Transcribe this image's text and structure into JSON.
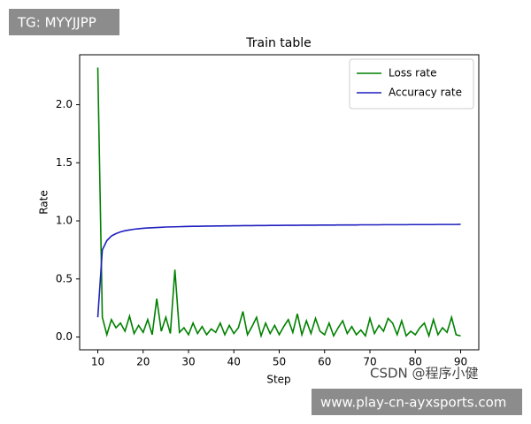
{
  "chart_data": {
    "type": "line",
    "title": "Train table",
    "xlabel": "Step",
    "ylabel": "Rate",
    "x": [
      10,
      11,
      12,
      13,
      14,
      15,
      16,
      17,
      18,
      19,
      20,
      21,
      22,
      23,
      24,
      25,
      26,
      27,
      28,
      29,
      30,
      31,
      32,
      33,
      34,
      35,
      36,
      37,
      38,
      39,
      40,
      41,
      42,
      43,
      44,
      45,
      46,
      47,
      48,
      49,
      50,
      51,
      52,
      53,
      54,
      55,
      56,
      57,
      58,
      59,
      60,
      61,
      62,
      63,
      64,
      65,
      66,
      67,
      68,
      69,
      70,
      71,
      72,
      73,
      74,
      75,
      76,
      77,
      78,
      79,
      80,
      81,
      82,
      83,
      84,
      85,
      86,
      87,
      88,
      89,
      90
    ],
    "series": [
      {
        "name": "Loss rate",
        "color": "#008000",
        "values": [
          2.32,
          0.17,
          0.02,
          0.15,
          0.08,
          0.12,
          0.05,
          0.18,
          0.03,
          0.1,
          0.04,
          0.15,
          0.02,
          0.33,
          0.05,
          0.17,
          0.03,
          0.58,
          0.04,
          0.08,
          0.02,
          0.12,
          0.03,
          0.09,
          0.02,
          0.07,
          0.04,
          0.12,
          0.02,
          0.1,
          0.03,
          0.08,
          0.22,
          0.02,
          0.09,
          0.17,
          0.01,
          0.12,
          0.03,
          0.1,
          0.02,
          0.09,
          0.15,
          0.04,
          0.2,
          0.02,
          0.14,
          0.03,
          0.16,
          0.05,
          0.02,
          0.12,
          0.01,
          0.08,
          0.14,
          0.03,
          0.09,
          0.02,
          0.06,
          0.01,
          0.16,
          0.03,
          0.1,
          0.05,
          0.16,
          0.12,
          0.02,
          0.14,
          0.01,
          0.05,
          0.02,
          0.08,
          0.12,
          0.01,
          0.15,
          0.02,
          0.08,
          0.04,
          0.17,
          0.02,
          0.01
        ]
      },
      {
        "name": "Accuracy rate",
        "color": "#1f1fbf",
        "values": [
          0.17,
          0.75,
          0.83,
          0.87,
          0.89,
          0.905,
          0.915,
          0.922,
          0.928,
          0.932,
          0.936,
          0.939,
          0.941,
          0.943,
          0.945,
          0.947,
          0.948,
          0.949,
          0.95,
          0.951,
          0.952,
          0.953,
          0.953,
          0.954,
          0.955,
          0.955,
          0.956,
          0.956,
          0.957,
          0.957,
          0.958,
          0.958,
          0.959,
          0.959,
          0.959,
          0.96,
          0.96,
          0.96,
          0.961,
          0.961,
          0.961,
          0.962,
          0.962,
          0.962,
          0.962,
          0.963,
          0.963,
          0.963,
          0.963,
          0.964,
          0.964,
          0.964,
          0.964,
          0.965,
          0.965,
          0.965,
          0.965,
          0.965,
          0.966,
          0.966,
          0.966,
          0.966,
          0.966,
          0.967,
          0.967,
          0.967,
          0.967,
          0.967,
          0.967,
          0.968,
          0.968,
          0.968,
          0.968,
          0.968,
          0.968,
          0.969,
          0.969,
          0.969,
          0.969,
          0.969,
          0.97
        ]
      }
    ],
    "xlim": [
      6,
      94
    ],
    "xticks": [
      10,
      20,
      30,
      40,
      50,
      60,
      70,
      80,
      90
    ],
    "ylim": [
      -0.11,
      2.43
    ],
    "yticks": [
      {
        "value": 0,
        "label": "0.0"
      },
      0.5,
      {
        "value": 1,
        "label": "1.0"
      },
      1.5,
      {
        "value": 2,
        "label": "2.0"
      }
    ],
    "legend": "upper right"
  },
  "overlays": {
    "tag": "TG: MYYJJPP",
    "credit": "CSDN @程序小健",
    "url": "www.play-cn-ayxsports.com"
  }
}
